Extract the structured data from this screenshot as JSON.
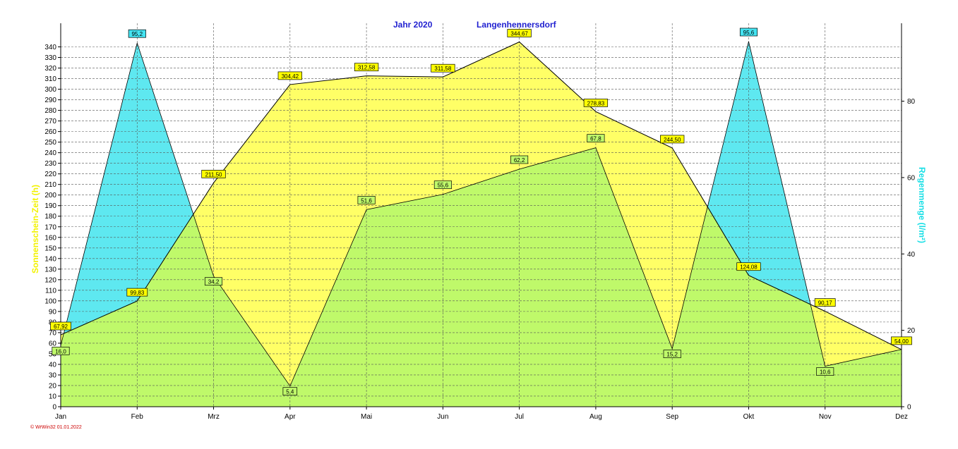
{
  "chart_data": {
    "type": "area",
    "title_year": "Jahr  2020",
    "title_location": "Langenhennersdorf",
    "categories": [
      "Jan",
      "Feb",
      "Mrz",
      "Apr",
      "Mai",
      "Jun",
      "Jul",
      "Aug",
      "Sep",
      "Okt",
      "Nov",
      "Dez"
    ],
    "ylabel_left": "Sonnenschein-Zeit  (h)",
    "ylabel_right": "Regenmenge  (l/m²)",
    "ylim_left": [
      0,
      345
    ],
    "ylim_right": [
      0,
      95.6
    ],
    "yticks_left": [
      0,
      10,
      20,
      30,
      40,
      50,
      60,
      70,
      80,
      90,
      100,
      110,
      120,
      130,
      140,
      150,
      160,
      170,
      180,
      190,
      200,
      210,
      220,
      230,
      240,
      250,
      260,
      270,
      280,
      290,
      300,
      310,
      320,
      330,
      340
    ],
    "yticks_right": [
      0,
      20,
      40,
      60,
      80
    ],
    "grid": true,
    "series": [
      {
        "name": "Sonnenschein",
        "axis": "left",
        "values": [
          67.92,
          99.83,
          211.5,
          304.42,
          312.58,
          311.58,
          344.67,
          278.83,
          244.5,
          124.08,
          90.17,
          54.0
        ],
        "labels": [
          "67,92",
          "99,83",
          "211,50",
          "304,42",
          "312,58",
          "311,58",
          "344,67",
          "278,83",
          "244,50",
          "124,08",
          "90,17",
          "54,00"
        ],
        "color": "#ffff66",
        "label_color": "#ffff00"
      },
      {
        "name": "Regen",
        "axis": "right",
        "values": [
          16.0,
          95.2,
          34.2,
          5.4,
          51.6,
          55.6,
          62.2,
          67.8,
          15.2,
          95.6,
          10.6,
          15.0
        ],
        "labels": [
          "16,0",
          "95,2",
          "34,2",
          "5,4",
          "51,6",
          "55,6",
          "62,2",
          "67,8",
          "15,2",
          "95,6",
          "10,6",
          ""
        ],
        "color": "#5ee8f0",
        "label_color_high": "#44e4f2",
        "label_color_low": "#bff96a"
      }
    ],
    "overlap_color": "#bff96a"
  },
  "footer": "© WrWin32  01.01.2022"
}
